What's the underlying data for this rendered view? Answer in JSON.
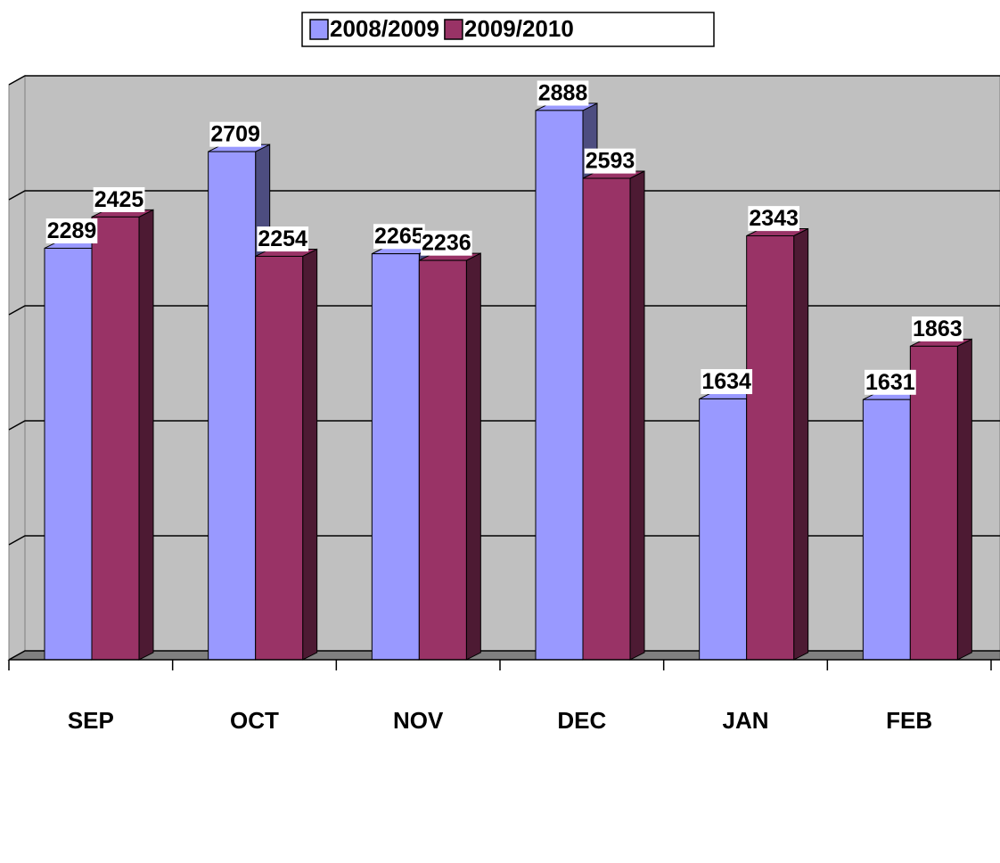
{
  "chart_data": {
    "type": "bar3d",
    "categories": [
      "SEP",
      "OCT",
      "NOV",
      "DEC",
      "JAN",
      "FEB"
    ],
    "series": [
      {
        "name": "2008/2009",
        "color": "#9999ff",
        "values": [
          2289,
          2709,
          2265,
          2888,
          1634,
          1631
        ]
      },
      {
        "name": "2009/2010",
        "color": "#993366",
        "values": [
          2425,
          2254,
          2236,
          2593,
          2343,
          1863
        ]
      }
    ],
    "ylim": [
      500,
      3000
    ],
    "yticks": [
      500,
      1000,
      1500,
      2000,
      2500,
      3000
    ],
    "grid": true
  }
}
